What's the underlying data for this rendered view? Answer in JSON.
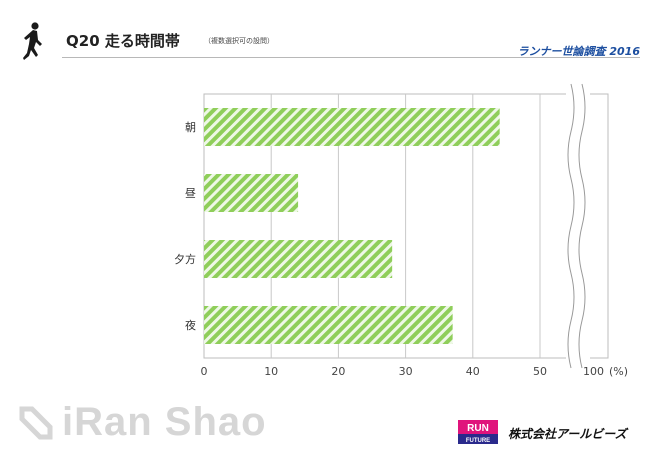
{
  "header": {
    "title": "Q20 走る時間帯",
    "subtitle": "（複数選択可の設問）",
    "survey": "ランナー世論調査 2016"
  },
  "chart_data": {
    "type": "bar",
    "orientation": "horizontal",
    "categories": [
      "朝",
      "昼",
      "夕方",
      "夜"
    ],
    "values": [
      44,
      14,
      28,
      37
    ],
    "xticks": [
      "0",
      "10",
      "20",
      "30",
      "40",
      "50",
      "100"
    ],
    "xunit": "(%)",
    "xlim": [
      0,
      100
    ],
    "axis_break": "between 50 and 100",
    "grid": true,
    "bar_color": "#8fce5a"
  },
  "footer": {
    "watermark": "iRan Shao",
    "logo": {
      "line1": "RUN",
      "line2": "FUTURE"
    },
    "company": "株式会社アールビーズ"
  }
}
